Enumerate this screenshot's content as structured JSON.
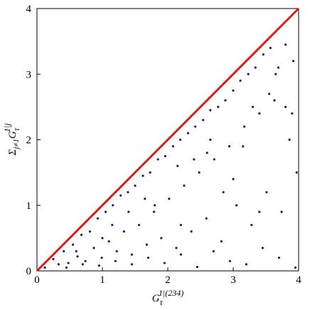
{
  "chart_data": {
    "type": "scatter",
    "xlabel": {
      "base": "G",
      "sub": "τ",
      "sup": "1|(234)"
    },
    "ylabel": {
      "prefix": "Σ",
      "prefix_sub": "j≠1",
      "base": "G",
      "sub": "τ",
      "sup": "1|j"
    },
    "xlim": [
      0,
      4
    ],
    "ylim": [
      0,
      4
    ],
    "xticks": [
      0,
      1,
      2,
      3,
      4
    ],
    "yticks": [
      0,
      1,
      2,
      3,
      4
    ],
    "color": "#1c1c72",
    "x": [
      0.12,
      0.25,
      0.33,
      0.41,
      0.48,
      0.55,
      0.62,
      0.68,
      0.74,
      0.81,
      0.87,
      0.93,
      0.99,
      1.05,
      1.1,
      1.16,
      1.22,
      1.28,
      1.33,
      1.39,
      1.45,
      1.5,
      1.56,
      1.62,
      1.68,
      1.73,
      1.79,
      1.85,
      1.9,
      1.96,
      2.02,
      2.08,
      2.13,
      2.19,
      2.25,
      2.31,
      2.36,
      2.42,
      2.48,
      2.54,
      2.59,
      2.65,
      2.71,
      2.77,
      2.82,
      2.88,
      2.94,
      3.0,
      3.05,
      3.11,
      3.17,
      3.23,
      3.28,
      3.34,
      3.4,
      3.46,
      3.51,
      3.57,
      3.63,
      3.69,
      3.74,
      3.8,
      3.86,
      3.92,
      3.97,
      0.45,
      0.7,
      0.95,
      1.2,
      1.45,
      1.7,
      1.95,
      2.2,
      2.45,
      2.7,
      2.95,
      3.2,
      3.45,
      3.7,
      3.95,
      0.6,
      1.0,
      1.4,
      1.8,
      2.2,
      2.6,
      3.0,
      3.4,
      3.8,
      1.15,
      1.65,
      2.15,
      2.65,
      3.15,
      3.65,
      3.9,
      3.55,
      3.3,
      2.85,
      2.4
    ],
    "y": [
      0.05,
      0.18,
      0.1,
      0.3,
      0.12,
      0.4,
      0.22,
      0.55,
      0.15,
      0.6,
      0.35,
      0.8,
      0.2,
      0.9,
      0.45,
      1.0,
      0.3,
      1.15,
      0.6,
      1.2,
      0.25,
      1.3,
      0.7,
      1.45,
      0.4,
      1.5,
      0.9,
      1.7,
      0.5,
      1.75,
      1.1,
      1.9,
      0.35,
      2.0,
      1.3,
      2.1,
      0.6,
      2.2,
      1.5,
      2.3,
      0.8,
      2.45,
      1.7,
      2.5,
      0.45,
      2.6,
      1.9,
      2.75,
      1.0,
      2.9,
      2.2,
      3.0,
      0.7,
      3.1,
      2.4,
      3.3,
      1.2,
      3.4,
      2.6,
      3.1,
      0.9,
      3.45,
      2.0,
      3.2,
      1.5,
      0.05,
      0.1,
      0.08,
      0.15,
      0.1,
      0.2,
      0.12,
      0.25,
      0.06,
      0.3,
      0.15,
      0.1,
      0.35,
      0.2,
      0.05,
      0.3,
      0.5,
      0.9,
      1.0,
      0.7,
      1.8,
      1.4,
      0.9,
      2.5,
      0.7,
      1.1,
      1.6,
      2.0,
      1.9,
      3.0,
      2.4,
      2.7,
      2.5,
      1.2,
      1.7
    ],
    "line": {
      "color": "#e01818",
      "x": [
        0,
        4
      ],
      "y": [
        0,
        4
      ]
    }
  }
}
